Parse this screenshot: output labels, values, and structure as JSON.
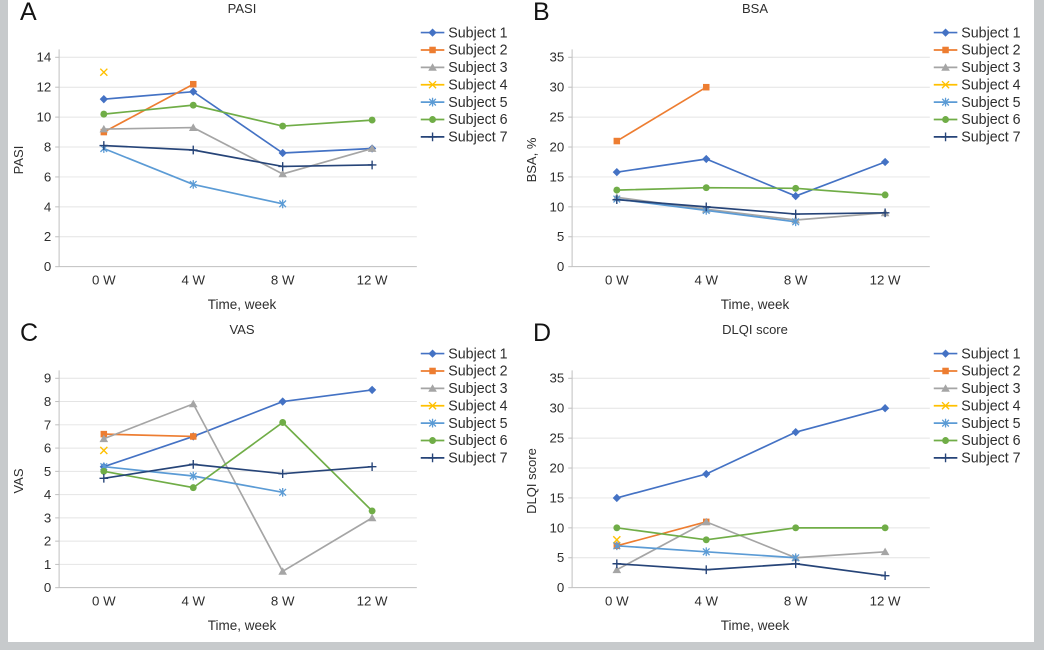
{
  "figure": {
    "border_color": "#c7cacc",
    "background": "#ffffff",
    "grid_color": "#e4e4e4",
    "axis_color": "#bfbfbf",
    "text_color": "#2e2e2e"
  },
  "subjects": [
    {
      "name": "Subject 1",
      "color": "#4472C4",
      "marker": "diamond"
    },
    {
      "name": "Subject 2",
      "color": "#ED7D31",
      "marker": "square"
    },
    {
      "name": "Subject 3",
      "color": "#A5A5A5",
      "marker": "triangle"
    },
    {
      "name": "Subject 4",
      "color": "#FFC000",
      "marker": "x"
    },
    {
      "name": "Subject 5",
      "color": "#5B9BD5",
      "marker": "star"
    },
    {
      "name": "Subject 6",
      "color": "#70AD47",
      "marker": "circle"
    },
    {
      "name": "Subject 7",
      "color": "#264478",
      "marker": "plus"
    }
  ],
  "chart_data": [
    {
      "id": "A",
      "type": "line",
      "title": "PASI",
      "xlabel": "Time, week",
      "ylabel": "PASI",
      "categories": [
        "0 W",
        "4 W",
        "8 W",
        "12 W"
      ],
      "ylim": [
        0,
        14
      ],
      "ytick_step": 2,
      "grid": "horizontal",
      "legend_position": "right",
      "series": [
        {
          "name": "Subject 1",
          "values": [
            11.2,
            11.7,
            7.6,
            7.9
          ]
        },
        {
          "name": "Subject 2",
          "values": [
            9,
            12.2,
            null,
            null
          ]
        },
        {
          "name": "Subject 3",
          "values": [
            9.2,
            9.3,
            6.2,
            7.9
          ]
        },
        {
          "name": "Subject 4",
          "values": [
            13,
            null,
            null,
            null
          ]
        },
        {
          "name": "Subject 5",
          "values": [
            7.9,
            5.5,
            4.2,
            null
          ]
        },
        {
          "name": "Subject 6",
          "values": [
            10.2,
            10.8,
            9.4,
            9.8
          ]
        },
        {
          "name": "Subject 7",
          "values": [
            8.1,
            7.8,
            6.7,
            6.8
          ]
        }
      ]
    },
    {
      "id": "B",
      "type": "line",
      "title": "BSA",
      "xlabel": "Time, week",
      "ylabel": "BSA, %",
      "categories": [
        "0 W",
        "4 W",
        "8 W",
        "12 W"
      ],
      "ylim": [
        0,
        35
      ],
      "ytick_step": 5,
      "grid": "horizontal",
      "legend_position": "right",
      "series": [
        {
          "name": "Subject 1",
          "values": [
            15.8,
            18,
            11.8,
            17.5
          ]
        },
        {
          "name": "Subject 2",
          "values": [
            21,
            30,
            null,
            null
          ]
        },
        {
          "name": "Subject 3",
          "values": [
            11.6,
            9.6,
            7.8,
            9
          ]
        },
        {
          "name": "Subject 4",
          "values": [
            null,
            null,
            null,
            null
          ]
        },
        {
          "name": "Subject 5",
          "values": [
            11.3,
            9.4,
            7.5,
            null
          ]
        },
        {
          "name": "Subject 6",
          "values": [
            12.8,
            13.2,
            13.1,
            12
          ]
        },
        {
          "name": "Subject 7",
          "values": [
            11.2,
            10,
            8.8,
            9
          ]
        }
      ]
    },
    {
      "id": "C",
      "type": "line",
      "title": "VAS",
      "xlabel": "Time, week",
      "ylabel": "VAS",
      "categories": [
        "0 W",
        "4 W",
        "8 W",
        "12 W"
      ],
      "ylim": [
        0,
        9
      ],
      "ytick_step": 1,
      "grid": "horizontal",
      "legend_position": "right",
      "series": [
        {
          "name": "Subject 1",
          "values": [
            5.2,
            6.5,
            8,
            8.5
          ]
        },
        {
          "name": "Subject 2",
          "values": [
            6.6,
            6.5,
            null,
            null
          ]
        },
        {
          "name": "Subject 3",
          "values": [
            6.4,
            7.9,
            0.7,
            3
          ]
        },
        {
          "name": "Subject 4",
          "values": [
            5.9,
            null,
            null,
            null
          ]
        },
        {
          "name": "Subject 5",
          "values": [
            5.2,
            4.8,
            4.1,
            null
          ]
        },
        {
          "name": "Subject 6",
          "values": [
            5,
            4.3,
            7.1,
            3.3
          ]
        },
        {
          "name": "Subject 7",
          "values": [
            4.7,
            5.3,
            4.9,
            5.2
          ]
        }
      ]
    },
    {
      "id": "D",
      "type": "line",
      "title": "DLQI score",
      "xlabel": "Time, week",
      "ylabel": "DLQI score",
      "categories": [
        "0 W",
        "4 W",
        "8 W",
        "12 W"
      ],
      "ylim": [
        0,
        35
      ],
      "ytick_step": 5,
      "grid": "horizontal",
      "legend_position": "right",
      "series": [
        {
          "name": "Subject 1",
          "values": [
            15,
            19,
            26,
            30
          ]
        },
        {
          "name": "Subject 2",
          "values": [
            7,
            11,
            null,
            null
          ]
        },
        {
          "name": "Subject 3",
          "values": [
            3,
            11,
            5,
            6
          ]
        },
        {
          "name": "Subject 4",
          "values": [
            8,
            null,
            null,
            null
          ]
        },
        {
          "name": "Subject 5",
          "values": [
            7,
            6,
            5,
            null
          ]
        },
        {
          "name": "Subject 6",
          "values": [
            10,
            8,
            10,
            10
          ]
        },
        {
          "name": "Subject 7",
          "values": [
            4,
            3,
            4,
            2
          ]
        }
      ]
    }
  ]
}
